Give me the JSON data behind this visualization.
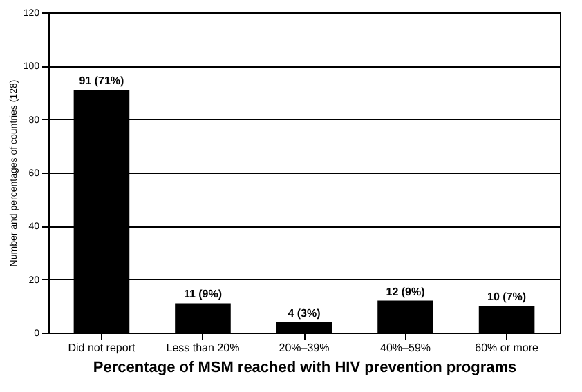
{
  "chart_data": {
    "type": "bar",
    "xlabel": "Percentage of MSM reached with HIV prevention programs",
    "ylabel": "Number and percentages of countries (128)",
    "categories": [
      "Did not report",
      "Less than 20%",
      "20%–39%",
      "40%–59%",
      "60% or more"
    ],
    "values": [
      91,
      11,
      4,
      12,
      10
    ],
    "value_labels": [
      "91 (71%)",
      "11 (9%)",
      "4 (3%)",
      "12 (9%)",
      "10 (7%)"
    ],
    "color": "#000000",
    "ylim": [
      0,
      120
    ],
    "yticks": [
      0,
      20,
      40,
      60,
      80,
      100,
      120
    ],
    "grid": "y"
  }
}
